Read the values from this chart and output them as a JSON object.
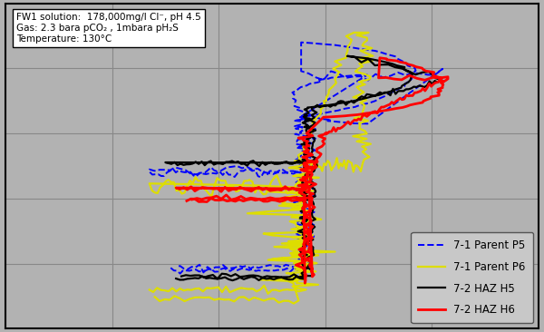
{
  "bg_color": "#b2b2b2",
  "plot_bg_color": "#b2b2b2",
  "grid_color": "#888888",
  "outer_border_color": "#000000",
  "annotation_text": "FW1 solution:  178,000mg/l Cl⁻, pH 4.5\nGas: 2.3 bara pCO₂ , 1mbara pH₂S\nTemperature: 130°C",
  "legend_entries": [
    "7-1 Parent P5",
    "7-1 Parent P6",
    "7-2 HAZ H5",
    "7-2 HAZ H6"
  ],
  "legend_colors": [
    "#0000ff",
    "#dddd00",
    "#000000",
    "#ff0000"
  ],
  "xlim": [
    0,
    100
  ],
  "ylim": [
    0,
    100
  ]
}
